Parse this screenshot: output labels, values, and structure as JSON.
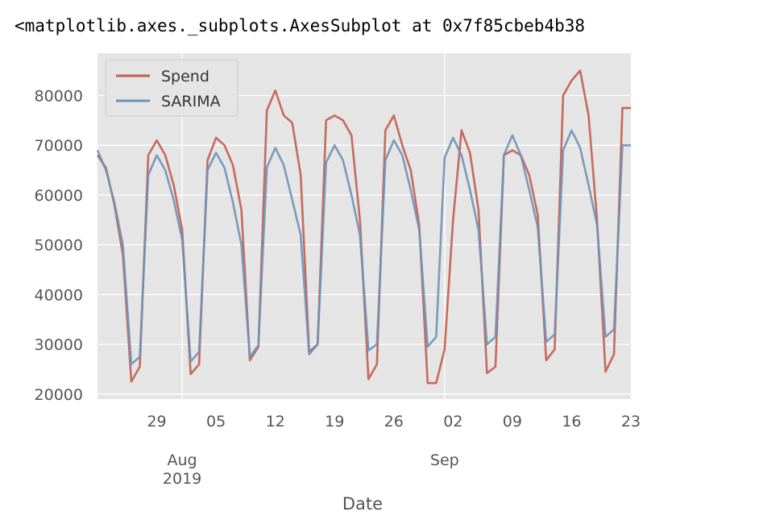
{
  "output_text": "<matplotlib.axes._subplots.AxesSubplot at 0x7f85cbeb4b38",
  "colors": {
    "spend": "#c45c4c",
    "sarima": "#6b92b8",
    "plot_bg": "#e5e5e5",
    "grid": "#ffffff"
  },
  "chart_data": {
    "type": "line",
    "xlabel": "Date",
    "ylim": [
      19000,
      88500
    ],
    "yticks": [
      20000,
      30000,
      40000,
      50000,
      60000,
      70000,
      80000
    ],
    "x_range": [
      "2019-07-22",
      "2019-09-23"
    ],
    "x_ticks": [
      {
        "date": "2019-07-29",
        "label": "29"
      },
      {
        "date": "2019-08-05",
        "label": "05"
      },
      {
        "date": "2019-08-12",
        "label": "12"
      },
      {
        "date": "2019-08-19",
        "label": "19"
      },
      {
        "date": "2019-08-26",
        "label": "26"
      },
      {
        "date": "2019-09-02",
        "label": "02"
      },
      {
        "date": "2019-09-09",
        "label": "09"
      },
      {
        "date": "2019-09-16",
        "label": "16"
      },
      {
        "date": "2019-09-23",
        "label": "23"
      }
    ],
    "month_ticks": [
      {
        "date": "2019-08-01",
        "label": "Aug",
        "sublabel": "2019"
      },
      {
        "date": "2019-09-01",
        "label": "Sep",
        "sublabel": ""
      }
    ],
    "grid": true,
    "legend_position": "upper-left",
    "series": [
      {
        "name": "Spend",
        "x": [
          "2019-07-22",
          "2019-07-23",
          "2019-07-24",
          "2019-07-25",
          "2019-07-26",
          "2019-07-27",
          "2019-07-28",
          "2019-07-29",
          "2019-07-30",
          "2019-07-31",
          "2019-08-01",
          "2019-08-02",
          "2019-08-03",
          "2019-08-04",
          "2019-08-05",
          "2019-08-06",
          "2019-08-07",
          "2019-08-08",
          "2019-08-09",
          "2019-08-10",
          "2019-08-11",
          "2019-08-12",
          "2019-08-13",
          "2019-08-14",
          "2019-08-15",
          "2019-08-16",
          "2019-08-17",
          "2019-08-18",
          "2019-08-19",
          "2019-08-20",
          "2019-08-21",
          "2019-08-22",
          "2019-08-23",
          "2019-08-24",
          "2019-08-25",
          "2019-08-26",
          "2019-08-27",
          "2019-08-28",
          "2019-08-29",
          "2019-08-30",
          "2019-08-31",
          "2019-09-01",
          "2019-09-02",
          "2019-09-03",
          "2019-09-04",
          "2019-09-05",
          "2019-09-06",
          "2019-09-07",
          "2019-09-08",
          "2019-09-09",
          "2019-09-10",
          "2019-09-11",
          "2019-09-12",
          "2019-09-13",
          "2019-09-14",
          "2019-09-15",
          "2019-09-16",
          "2019-09-17",
          "2019-09-18",
          "2019-09-19",
          "2019-09-20",
          "2019-09-21",
          "2019-09-22",
          "2019-09-23"
        ],
        "y": [
          68000,
          65500,
          58000,
          48000,
          22500,
          25500,
          68000,
          71000,
          68000,
          62000,
          53000,
          24000,
          26000,
          67000,
          71500,
          70000,
          66000,
          57000,
          26800,
          29500,
          77000,
          81000,
          76000,
          74500,
          64000,
          28500,
          30000,
          75000,
          76000,
          75000,
          72000,
          55000,
          23000,
          26000,
          73000,
          76000,
          70000,
          65000,
          54000,
          22200,
          22200,
          29000,
          55000,
          73000,
          68500,
          57000,
          24200,
          25500,
          68000,
          69000,
          68000,
          64000,
          56000,
          26800,
          29000,
          80000,
          83000,
          85000,
          76000,
          55000,
          24500,
          28000,
          77500,
          77500
        ]
      },
      {
        "name": "SARIMA",
        "x": [
          "2019-07-22",
          "2019-07-23",
          "2019-07-24",
          "2019-07-25",
          "2019-07-26",
          "2019-07-27",
          "2019-07-28",
          "2019-07-29",
          "2019-07-30",
          "2019-07-31",
          "2019-08-01",
          "2019-08-02",
          "2019-08-03",
          "2019-08-04",
          "2019-08-05",
          "2019-08-06",
          "2019-08-07",
          "2019-08-08",
          "2019-08-09",
          "2019-08-10",
          "2019-08-11",
          "2019-08-12",
          "2019-08-13",
          "2019-08-14",
          "2019-08-15",
          "2019-08-16",
          "2019-08-17",
          "2019-08-18",
          "2019-08-19",
          "2019-08-20",
          "2019-08-21",
          "2019-08-22",
          "2019-08-23",
          "2019-08-24",
          "2019-08-25",
          "2019-08-26",
          "2019-08-27",
          "2019-08-28",
          "2019-08-29",
          "2019-08-30",
          "2019-08-31",
          "2019-09-01",
          "2019-09-02",
          "2019-09-03",
          "2019-09-04",
          "2019-09-05",
          "2019-09-06",
          "2019-09-07",
          "2019-09-08",
          "2019-09-09",
          "2019-09-10",
          "2019-09-11",
          "2019-09-12",
          "2019-09-13",
          "2019-09-14",
          "2019-09-15",
          "2019-09-16",
          "2019-09-17",
          "2019-09-18",
          "2019-09-19",
          "2019-09-20",
          "2019-09-21",
          "2019-09-22",
          "2019-09-23"
        ],
        "y": [
          69000,
          65000,
          58500,
          50000,
          26000,
          27500,
          64000,
          68000,
          65000,
          59000,
          51000,
          26500,
          28500,
          65000,
          68500,
          65500,
          58500,
          50000,
          27500,
          29800,
          65500,
          69500,
          66000,
          59000,
          52000,
          28000,
          30000,
          66500,
          70000,
          67000,
          60000,
          52000,
          28800,
          30000,
          67000,
          71000,
          68000,
          61000,
          53000,
          29500,
          31500,
          67500,
          71500,
          68000,
          61000,
          53000,
          30000,
          31500,
          68000,
          72000,
          68000,
          61000,
          53500,
          30500,
          32000,
          69000,
          73000,
          69500,
          62000,
          54000,
          31500,
          33000,
          70000,
          70000
        ]
      }
    ]
  }
}
